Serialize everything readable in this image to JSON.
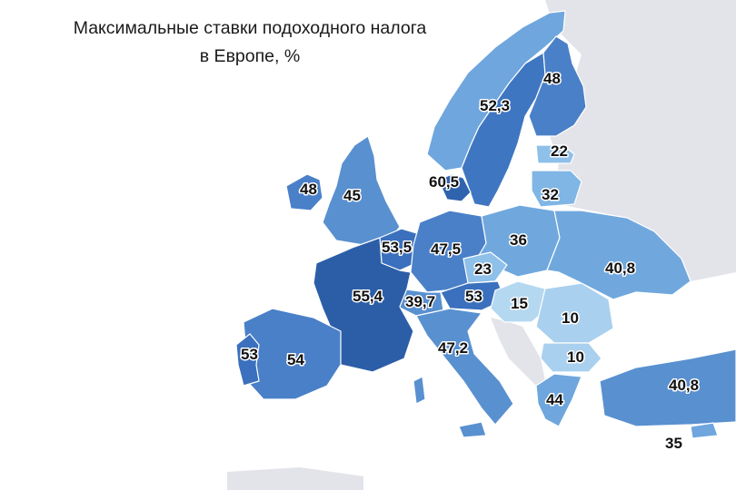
{
  "title_line1": "Максимальные ставки подоходного налога",
  "title_line2": "в Европе, %",
  "colors": {
    "background": "#ffffff",
    "no_data": "#e3e3ea",
    "scale_low": "#a9d0ee",
    "scale_high": "#2c5ea8"
  },
  "countries": [
    {
      "key": "norway",
      "value": null
    },
    {
      "key": "sweden",
      "value": "52,3"
    },
    {
      "key": "finland",
      "value": "48"
    },
    {
      "key": "estonia",
      "value": "22"
    },
    {
      "key": "latvia",
      "value": "32"
    },
    {
      "key": "denmark",
      "value": "60,5"
    },
    {
      "key": "ireland",
      "value": "48"
    },
    {
      "key": "uk",
      "value": "45"
    },
    {
      "key": "netherlands",
      "value": "53,5"
    },
    {
      "key": "germany",
      "value": "47,5"
    },
    {
      "key": "poland",
      "value": "36"
    },
    {
      "key": "czechia",
      "value": "23"
    },
    {
      "key": "austria",
      "value": "53"
    },
    {
      "key": "switzerland",
      "value": "39,7"
    },
    {
      "key": "france",
      "value": "55,4"
    },
    {
      "key": "spain",
      "value": "54"
    },
    {
      "key": "portugal",
      "value": "53"
    },
    {
      "key": "italy",
      "value": "47,2"
    },
    {
      "key": "hungary",
      "value": "15"
    },
    {
      "key": "romania",
      "value": "10"
    },
    {
      "key": "ukraine",
      "value": "40,8"
    },
    {
      "key": "bulgaria",
      "value": "10"
    },
    {
      "key": "greece",
      "value": "44"
    },
    {
      "key": "turkey",
      "value": "40,8"
    },
    {
      "key": "cyprus",
      "value": "35"
    }
  ]
}
